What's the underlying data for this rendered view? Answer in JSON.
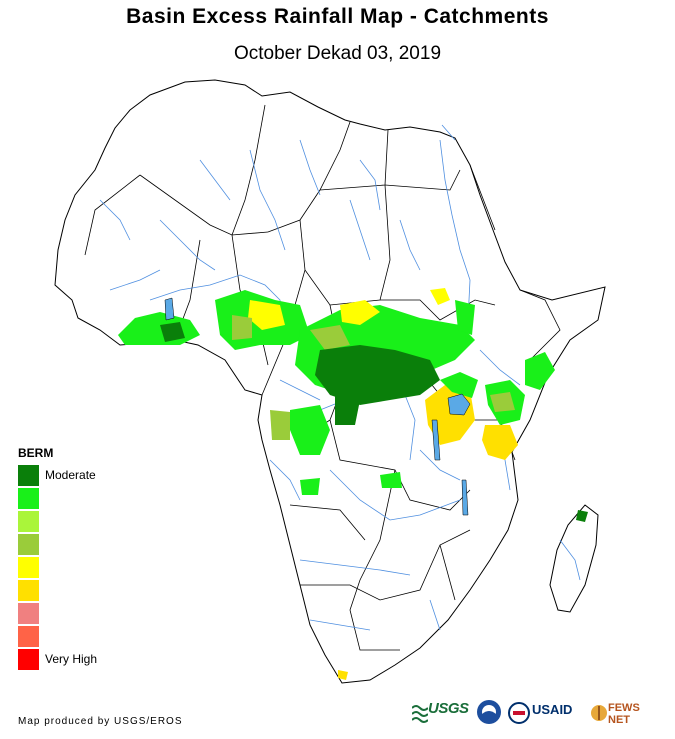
{
  "header": {
    "title": "Basin Excess Rainfall Map - Catchments",
    "subtitle": "October Dekad 03, 2019"
  },
  "legend": {
    "title": "BERM",
    "entries": [
      {
        "label": "Moderate",
        "color": "#0a7f0a"
      },
      {
        "label": "",
        "color": "#19f019"
      },
      {
        "label": "",
        "color": "#aaf53a"
      },
      {
        "label": "",
        "color": "#9acc3a"
      },
      {
        "label": "",
        "color": "#ffff00"
      },
      {
        "label": "",
        "color": "#ffe000"
      },
      {
        "label": "",
        "color": "#f08080"
      },
      {
        "label": "",
        "color": "#ff6347"
      },
      {
        "label": "Very High",
        "color": "#ff0000"
      }
    ]
  },
  "footer": {
    "credit": "Map produced by USGS/EROS"
  },
  "logos": {
    "usgs": "USGS",
    "usaid": "USAID",
    "fews": "FEWS NET",
    "noaa_icon": "noaa-seal-icon"
  },
  "colors": {
    "land": "#ffffff",
    "boundary": "#000000",
    "river": "#4f8fe0",
    "lake": "#5aa9e6"
  }
}
